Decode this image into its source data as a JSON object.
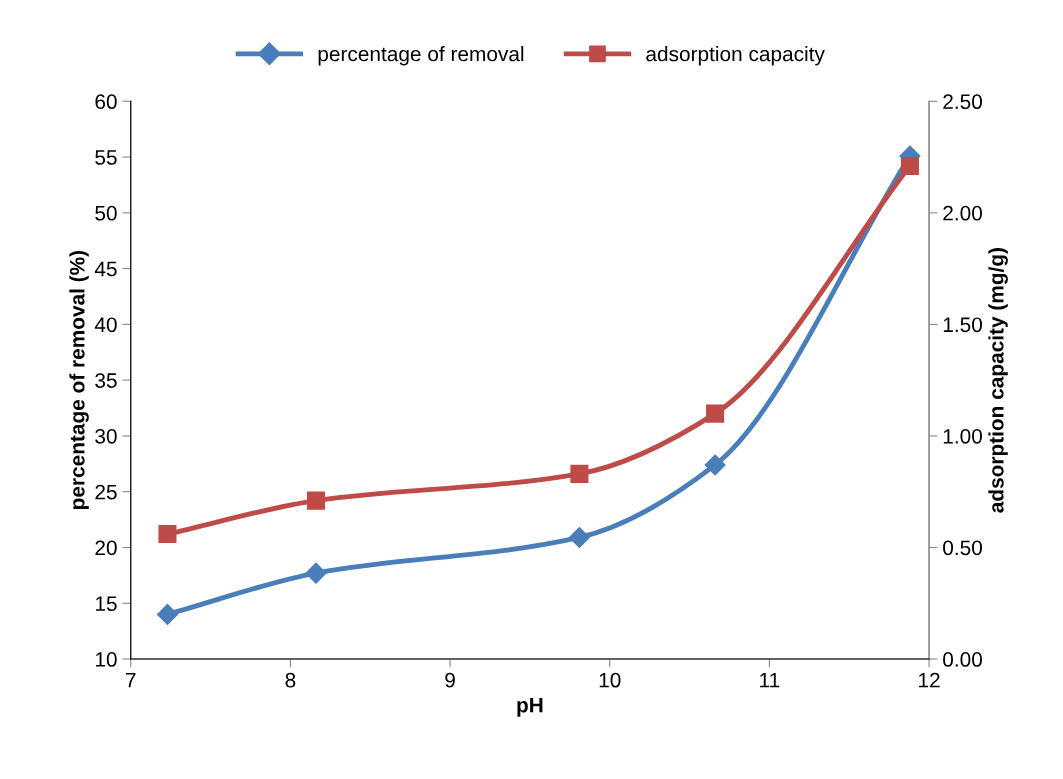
{
  "chart_data": {
    "type": "line",
    "xlabel": "pH",
    "ylabel": "percentage of removal (%)",
    "y2label": "adsorption capacity (mg/g)",
    "series": [
      {
        "name": "percentage of removal",
        "color": "#4a7ebb",
        "marker": "diamond",
        "x": [
          7.23,
          8.16,
          9.81,
          10.66,
          11.88
        ],
        "values": [
          14.0,
          17.7,
          20.9,
          27.4,
          55.1
        ]
      },
      {
        "name": "adsorption capacity",
        "color": "#be4b48",
        "marker": "square",
        "axis": "y2",
        "x": [
          7.23,
          8.16,
          9.81,
          10.66,
          11.88
        ],
        "values": [
          0.56,
          0.71,
          0.83,
          1.1,
          2.21
        ]
      }
    ],
    "xlim": [
      7,
      12
    ],
    "xticks": [
      7,
      8,
      9,
      10,
      11,
      12
    ],
    "ylim": [
      10,
      60
    ],
    "yticks": [
      10,
      15,
      20,
      25,
      30,
      35,
      40,
      45,
      50,
      55,
      60
    ],
    "y2lim": [
      0,
      2.5
    ],
    "y2ticks": [
      {
        "value": 0,
        "label": "0.00"
      },
      {
        "value": 0.5,
        "label": "0.50"
      },
      {
        "value": 1,
        "label": "1.00"
      },
      {
        "value": 1.5,
        "label": "1.50"
      },
      {
        "value": 2,
        "label": "2.00"
      },
      {
        "value": 2.5,
        "label": "2.50"
      }
    ],
    "grid": false,
    "legend": "top",
    "line_style": "solid"
  }
}
